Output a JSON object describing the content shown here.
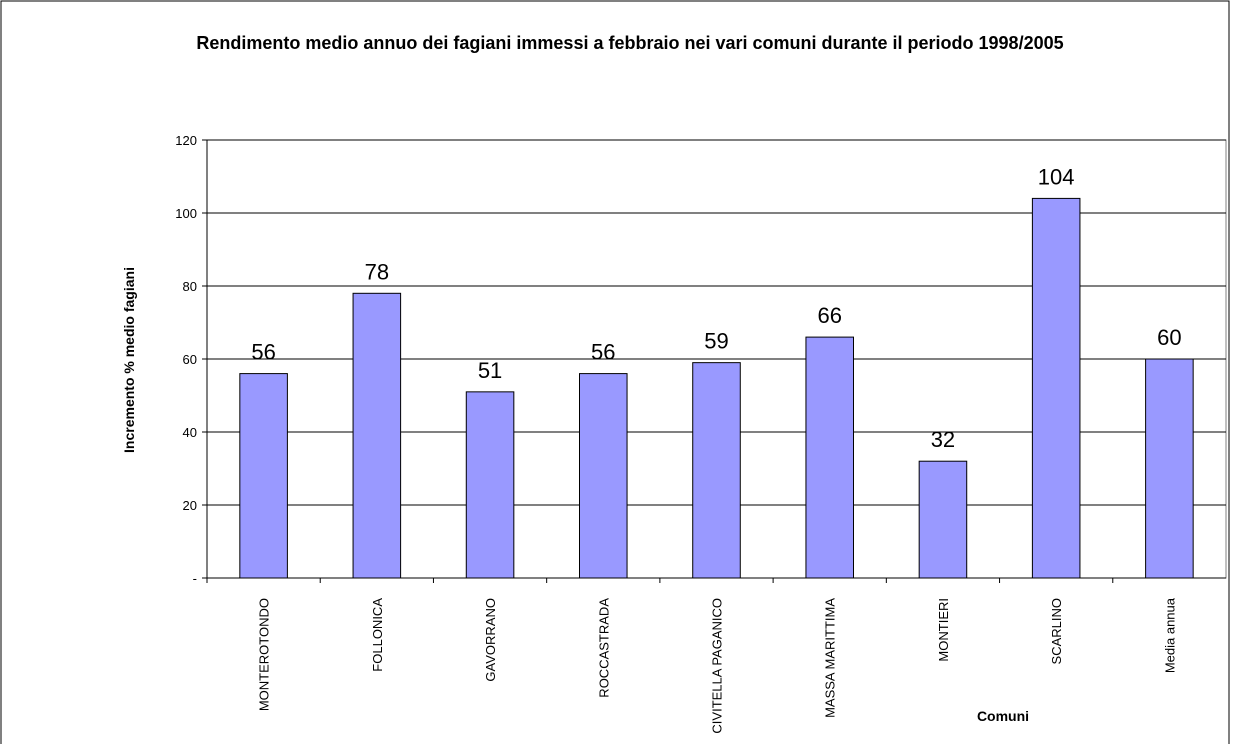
{
  "chart_data": {
    "type": "bar",
    "title": "Rendimento medio annuo dei fagiani immessi a febbraio nei vari comuni durante il periodo 1998/2005",
    "x_label": "Comuni",
    "y_label": "Incremento % medio fagiani",
    "categories": [
      "MONTEROTONDO",
      "FOLLONICA",
      "GAVORRANO",
      "ROCCASTRADA",
      "CIVITELLA PAGANICO",
      "MASSA MARITTIMA",
      "MONTIERI",
      "SCARLINO",
      "Media annua"
    ],
    "values": [
      56,
      78,
      51,
      56,
      59,
      66,
      32,
      104,
      60
    ],
    "color": "#9999ff",
    "ylim": [
      0,
      120
    ],
    "yticks": [
      {
        "value": 0,
        "label": "-"
      },
      20,
      40,
      60,
      80,
      100,
      120
    ],
    "grid": true
  }
}
